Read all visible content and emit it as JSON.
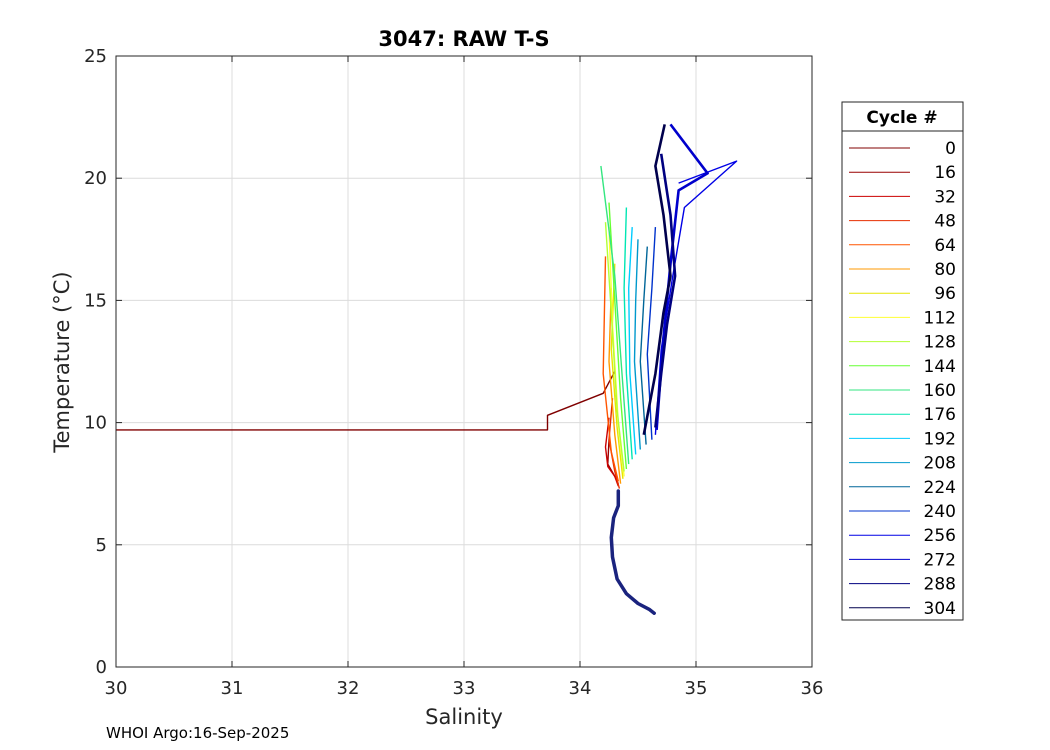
{
  "chart_data": {
    "type": "line",
    "title": "3047: RAW T-S",
    "xlabel": "Salinity",
    "ylabel": "Temperature (°C)",
    "xlim": [
      30,
      36
    ],
    "ylim": [
      0,
      25
    ],
    "xticks": [
      "30",
      "31",
      "32",
      "33",
      "34",
      "35",
      "36"
    ],
    "yticks": [
      "0",
      "5",
      "10",
      "15",
      "20",
      "25"
    ],
    "grid": true,
    "legend_title": "Cycle #",
    "legend_position": "right-outside",
    "series": [
      {
        "name": "0",
        "color": "#800000",
        "x": [
          30.0,
          33.72,
          33.72,
          34.2,
          34.3
        ],
        "y": [
          9.7,
          9.7,
          10.3,
          11.2,
          12.1
        ]
      },
      {
        "name": "16",
        "color": "#990000",
        "x": [
          34.25,
          34.24,
          34.3,
          34.33
        ],
        "y": [
          9.3,
          8.3,
          7.8,
          7.5
        ]
      },
      {
        "name": "32",
        "color": "#cc0000",
        "x": [
          34.25,
          34.22,
          34.24,
          34.3,
          34.33
        ],
        "y": [
          10.2,
          9.0,
          8.2,
          7.8,
          7.4
        ]
      },
      {
        "name": "48",
        "color": "#e62e00",
        "x": [
          34.28,
          34.25,
          34.3,
          34.34
        ],
        "y": [
          11.0,
          9.3,
          8.0,
          7.3
        ]
      },
      {
        "name": "64",
        "color": "#ff5500",
        "x": [
          34.22,
          34.2,
          34.27,
          34.33
        ],
        "y": [
          16.8,
          12.0,
          8.8,
          7.6
        ]
      },
      {
        "name": "80",
        "color": "#ff9900",
        "x": [
          34.27,
          34.25,
          34.3,
          34.35
        ],
        "y": [
          15.5,
          12.5,
          9.5,
          7.5
        ]
      },
      {
        "name": "96",
        "color": "#e6e600",
        "x": [
          34.3,
          34.27,
          34.32,
          34.37
        ],
        "y": [
          16.5,
          13.0,
          9.8,
          7.7
        ]
      },
      {
        "name": "112",
        "color": "#ffff33",
        "x": [
          34.25,
          34.28,
          34.33,
          34.38
        ],
        "y": [
          18.0,
          14.0,
          10.0,
          7.8
        ]
      },
      {
        "name": "128",
        "color": "#b3ff33",
        "x": [
          34.22,
          34.27,
          34.32,
          34.38
        ],
        "y": [
          18.2,
          14.5,
          10.5,
          8.0
        ]
      },
      {
        "name": "144",
        "color": "#66ff33",
        "x": [
          34.25,
          34.3,
          34.35,
          34.4
        ],
        "y": [
          19.0,
          15.0,
          11.0,
          8.1
        ]
      },
      {
        "name": "160",
        "color": "#33e680",
        "x": [
          34.18,
          34.3,
          34.37,
          34.42
        ],
        "y": [
          20.5,
          16.0,
          11.5,
          8.3
        ]
      },
      {
        "name": "176",
        "color": "#00e6b3",
        "x": [
          34.4,
          34.38,
          34.4,
          34.45
        ],
        "y": [
          18.8,
          15.5,
          12.0,
          8.5
        ]
      },
      {
        "name": "192",
        "color": "#00ccff",
        "x": [
          34.45,
          34.42,
          34.43,
          34.48
        ],
        "y": [
          18.0,
          15.5,
          12.0,
          8.7
        ]
      },
      {
        "name": "208",
        "color": "#0099cc",
        "x": [
          34.5,
          34.48,
          34.47,
          34.52
        ],
        "y": [
          17.5,
          15.0,
          12.5,
          8.9
        ]
      },
      {
        "name": "224",
        "color": "#006699",
        "x": [
          34.58,
          34.55,
          34.52,
          34.57
        ],
        "y": [
          17.2,
          15.0,
          12.5,
          9.1
        ]
      },
      {
        "name": "240",
        "color": "#0033cc",
        "x": [
          34.65,
          34.62,
          34.58,
          34.62
        ],
        "y": [
          18.0,
          15.5,
          12.8,
          9.3
        ]
      },
      {
        "name": "256",
        "color": "#0000e6",
        "x": [
          34.85,
          35.35,
          34.9,
          34.8,
          34.7,
          34.65
        ],
        "y": [
          19.8,
          20.7,
          18.8,
          16.0,
          13.0,
          9.5
        ]
      },
      {
        "name": "272",
        "color": "#0000cc",
        "x": [
          34.78,
          35.1,
          34.85,
          34.78,
          34.72,
          34.66
        ],
        "y": [
          22.2,
          20.2,
          19.5,
          16.5,
          13.5,
          9.7
        ]
      },
      {
        "name": "288",
        "color": "#000080",
        "x": [
          34.7,
          34.78,
          34.82,
          34.75,
          34.7,
          34.65
        ],
        "y": [
          21.0,
          18.5,
          16.0,
          14.0,
          12.0,
          9.8
        ]
      },
      {
        "name": "304",
        "color": "#00004d",
        "x": [
          34.73,
          34.65,
          34.72,
          34.78,
          34.72,
          34.65,
          34.55
        ],
        "y": [
          22.2,
          20.5,
          18.5,
          16.0,
          14.5,
          12.0,
          9.5
        ]
      }
    ],
    "deep_branch": {
      "color": "#1a237e",
      "x": [
        34.33,
        34.33,
        34.29,
        34.27,
        34.28,
        34.32,
        34.4,
        34.5,
        34.6,
        34.64
      ],
      "y": [
        7.2,
        6.6,
        6.1,
        5.3,
        4.5,
        3.6,
        3.0,
        2.6,
        2.35,
        2.2
      ]
    }
  },
  "footer": "WHOI Argo:16-Sep-2025"
}
